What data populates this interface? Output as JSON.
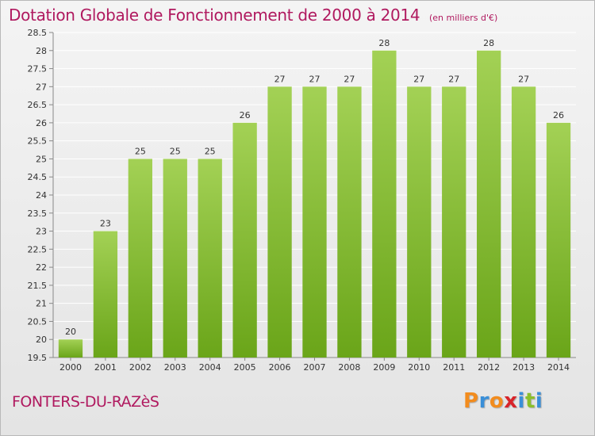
{
  "header": {
    "title": "Dotation Globale de Fonctionnement de 2000 à 2014",
    "unit": "(en milliers d'€)"
  },
  "footer": {
    "commune": "FONTERS-DU-RAZèS",
    "logo_letters": [
      "P",
      "r",
      "o",
      "x",
      "i",
      "t",
      "i"
    ],
    "logo_colors": [
      "#f28c1e",
      "#3a8fd8",
      "#f28c1e",
      "#d8242a",
      "#3a8fd8",
      "#8bbf2a",
      "#3a8fd8"
    ]
  },
  "chart_data": {
    "type": "bar",
    "title": "Dotation Globale de Fonctionnement de 2000 à 2014",
    "subtitle": "(en milliers d'€)",
    "xlabel": "",
    "ylabel": "",
    "categories": [
      "2000",
      "2001",
      "2002",
      "2003",
      "2004",
      "2005",
      "2006",
      "2007",
      "2008",
      "2009",
      "2010",
      "2011",
      "2012",
      "2013",
      "2014"
    ],
    "values": [
      20,
      23,
      25,
      25,
      25,
      26,
      27,
      27,
      27,
      28,
      27,
      27,
      28,
      27,
      26
    ],
    "data_labels": [
      "20",
      "23",
      "25",
      "25",
      "25",
      "26",
      "27",
      "27",
      "27",
      "28",
      "27",
      "27",
      "28",
      "27",
      "26"
    ],
    "ylim": [
      19.5,
      28.5
    ],
    "yticks": [
      "19.5",
      "20",
      "20.5",
      "21",
      "21.5",
      "22",
      "22.5",
      "23",
      "23.5",
      "24",
      "24.5",
      "25",
      "25.5",
      "26",
      "26.5",
      "27",
      "27.5",
      "28",
      "28.5"
    ],
    "grid": true,
    "legend": "none",
    "bar_color_top": "#a3d155",
    "bar_color_bottom": "#6aa519",
    "grid_color": "#ffffff"
  }
}
